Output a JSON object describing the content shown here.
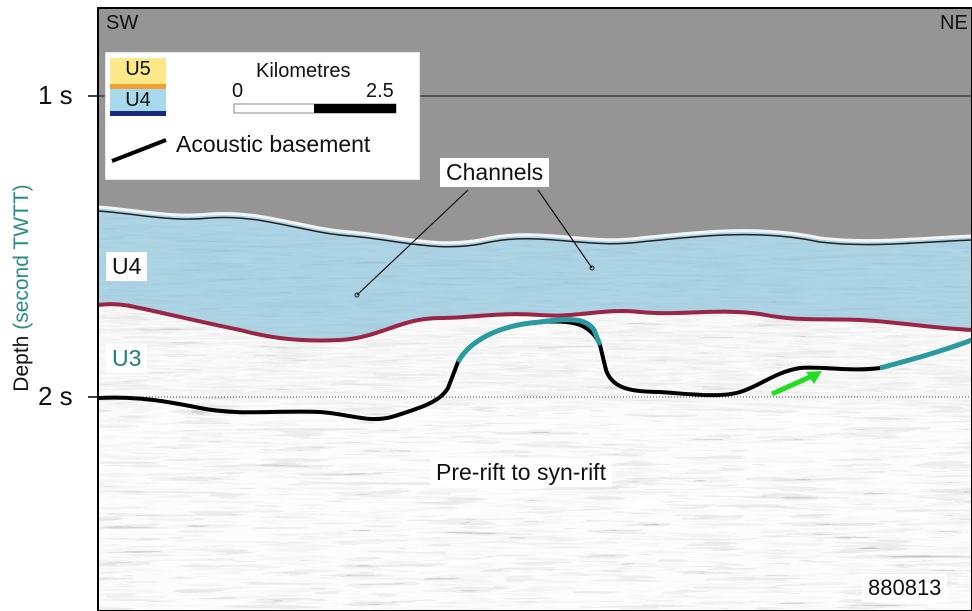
{
  "orientation": {
    "left": "SW",
    "right": "NE"
  },
  "y_axis": {
    "label_main": "Depth",
    "label_paren": "(second TWTT)",
    "ticks": [
      "1 s",
      "2 s"
    ]
  },
  "legend": {
    "units": [
      {
        "label": "U5",
        "color": "#fde98a",
        "line_color": "#f0a030"
      },
      {
        "label": "U4",
        "color": "#a9d9ec",
        "line_color": "#1a2a7a"
      }
    ],
    "scale": {
      "title": "Kilometres",
      "min": "0",
      "max": "2.5"
    },
    "basement_label": "Acoustic basement"
  },
  "annotations": {
    "channels": "Channels",
    "u4": "U4",
    "u3": "U3",
    "prerift": "Pre-rift to syn-rift",
    "line_id": "880813"
  },
  "colors": {
    "water": "#959595",
    "u4_fill": "#8fc6dc",
    "u3_top": "#9a2545",
    "basement": "#000000",
    "teal_horizon": "#2a9aa0",
    "arrow": "#22dd22"
  }
}
